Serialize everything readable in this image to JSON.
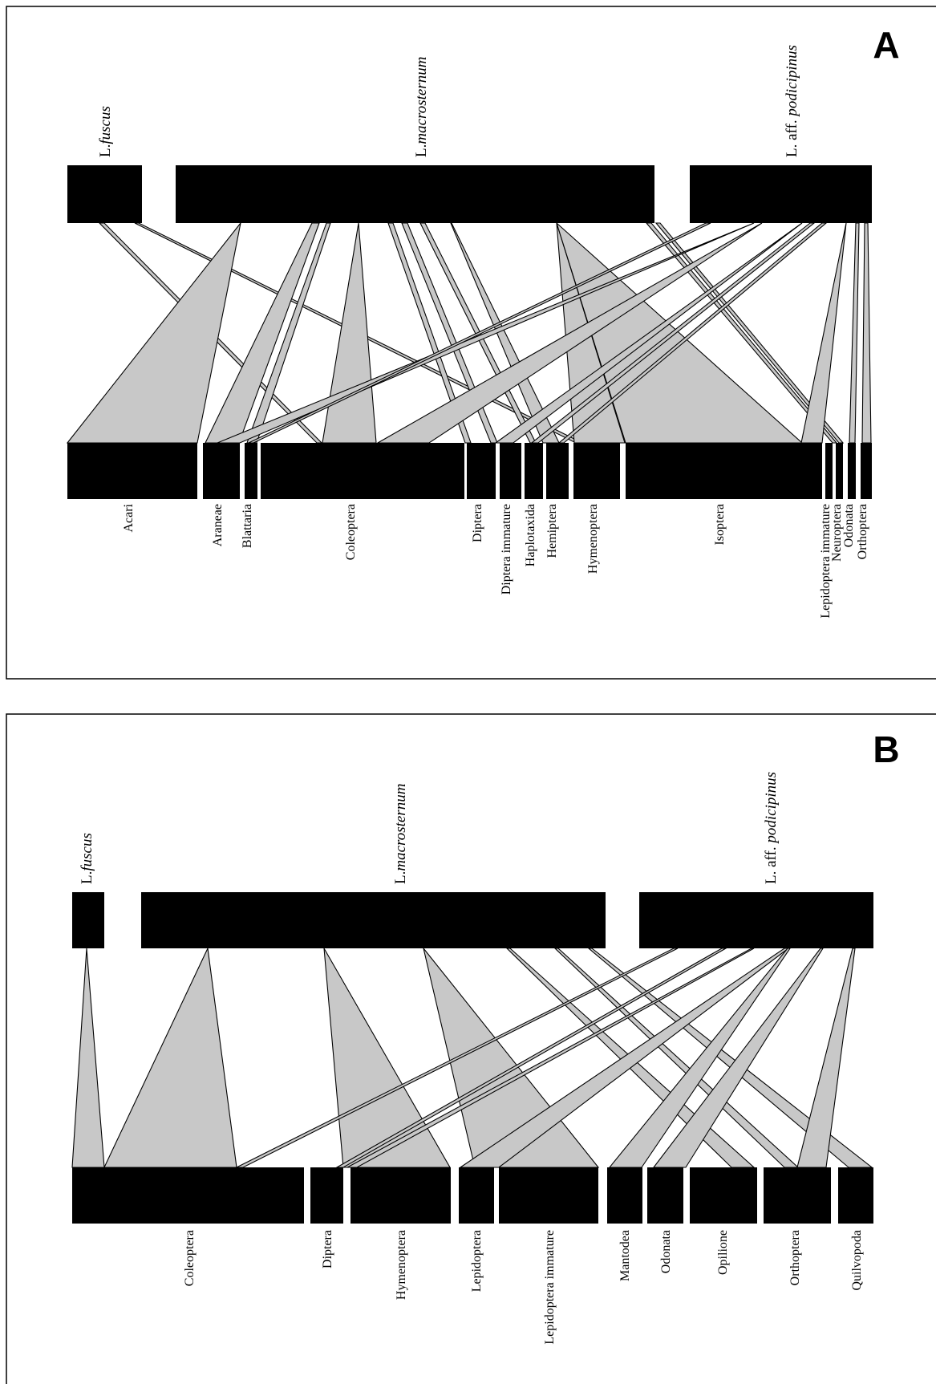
{
  "panels": [
    {
      "id": "a",
      "letter": "A",
      "predators": [
        {
          "key": "fus",
          "prefix": "L.",
          "name": "fuscus",
          "aff": ""
        },
        {
          "key": "mac",
          "prefix": "L.",
          "name": "macrosternum",
          "aff": ""
        },
        {
          "key": "pod",
          "prefix": "L.",
          "name": "podicipinus",
          "aff": " aff. "
        }
      ],
      "prey": [
        {
          "key": "aca",
          "label": "Acari"
        },
        {
          "key": "ara",
          "label": "Araneae"
        },
        {
          "key": "bla",
          "label": "Blattaria"
        },
        {
          "key": "col",
          "label": "Coleoptera"
        },
        {
          "key": "dip",
          "label": "Diptera"
        },
        {
          "key": "dim",
          "label": "Diptera immature"
        },
        {
          "key": "hap",
          "label": "Haplotaxida"
        },
        {
          "key": "hem",
          "label": "Hemiptera"
        },
        {
          "key": "hym",
          "label": "Hymenoptera"
        },
        {
          "key": "iso",
          "label": "Isoptera"
        },
        {
          "key": "lim",
          "label": "Lepidoptera immature"
        },
        {
          "key": "neu",
          "label": "Neuroptera"
        },
        {
          "key": "odo",
          "label": "Odonata"
        },
        {
          "key": "ort",
          "label": "Orthoptera"
        }
      ],
      "interactions": [
        {
          "predator": "fus",
          "prey": "col"
        },
        {
          "predator": "fus",
          "prey": "hym"
        },
        {
          "predator": "mac",
          "prey": "aca"
        },
        {
          "predator": "mac",
          "prey": "ara"
        },
        {
          "predator": "mac",
          "prey": "bla"
        },
        {
          "predator": "mac",
          "prey": "col"
        },
        {
          "predator": "mac",
          "prey": "dip"
        },
        {
          "predator": "mac",
          "prey": "dim"
        },
        {
          "predator": "mac",
          "prey": "hap"
        },
        {
          "predator": "mac",
          "prey": "hem"
        },
        {
          "predator": "mac",
          "prey": "hym"
        },
        {
          "predator": "mac",
          "prey": "iso"
        },
        {
          "predator": "mac",
          "prey": "lim"
        },
        {
          "predator": "mac",
          "prey": "neu"
        },
        {
          "predator": "pod",
          "prey": "ara"
        },
        {
          "predator": "pod",
          "prey": "bla"
        },
        {
          "predator": "pod",
          "prey": "col"
        },
        {
          "predator": "pod",
          "prey": "dim"
        },
        {
          "predator": "pod",
          "prey": "hap"
        },
        {
          "predator": "pod",
          "prey": "hem"
        },
        {
          "predator": "pod",
          "prey": "lim"
        },
        {
          "predator": "pod",
          "prey": "odo"
        },
        {
          "predator": "pod",
          "prey": "ort"
        }
      ]
    },
    {
      "id": "b",
      "letter": "B",
      "predators": [
        {
          "key": "fus",
          "prefix": "L.",
          "name": "fuscus",
          "aff": ""
        },
        {
          "key": "mac",
          "prefix": "L.",
          "name": "macrosternum",
          "aff": ""
        },
        {
          "key": "pod",
          "prefix": "L.",
          "name": "podicipinus",
          "aff": " aff. "
        }
      ],
      "prey": [
        {
          "key": "col",
          "label": "Coleoptera"
        },
        {
          "key": "dip",
          "label": "Diptera"
        },
        {
          "key": "hym",
          "label": "Hymenoptera"
        },
        {
          "key": "lep",
          "label": "Lepidoptera"
        },
        {
          "key": "lim",
          "label": "Lepidoptera immature"
        },
        {
          "key": "man",
          "label": "Mantodea"
        },
        {
          "key": "odo",
          "label": "Odonata"
        },
        {
          "key": "opi",
          "label": "Opilione"
        },
        {
          "key": "ort",
          "label": "Orthoptera"
        },
        {
          "key": "qui",
          "label": "Quilvopoda"
        }
      ],
      "interactions": [
        {
          "predator": "fus",
          "prey": "col"
        },
        {
          "predator": "mac",
          "prey": "col"
        },
        {
          "predator": "mac",
          "prey": "hym"
        },
        {
          "predator": "mac",
          "prey": "lim"
        },
        {
          "predator": "mac",
          "prey": "opi"
        },
        {
          "predator": "mac",
          "prey": "ort"
        },
        {
          "predator": "mac",
          "prey": "qui"
        },
        {
          "predator": "pod",
          "prey": "col"
        },
        {
          "predator": "pod",
          "prey": "dip"
        },
        {
          "predator": "pod",
          "prey": "hym"
        },
        {
          "predator": "pod",
          "prey": "lep"
        },
        {
          "predator": "pod",
          "prey": "man"
        },
        {
          "predator": "pod",
          "prey": "odo"
        },
        {
          "predator": "pod",
          "prey": "ort"
        }
      ]
    }
  ]
}
